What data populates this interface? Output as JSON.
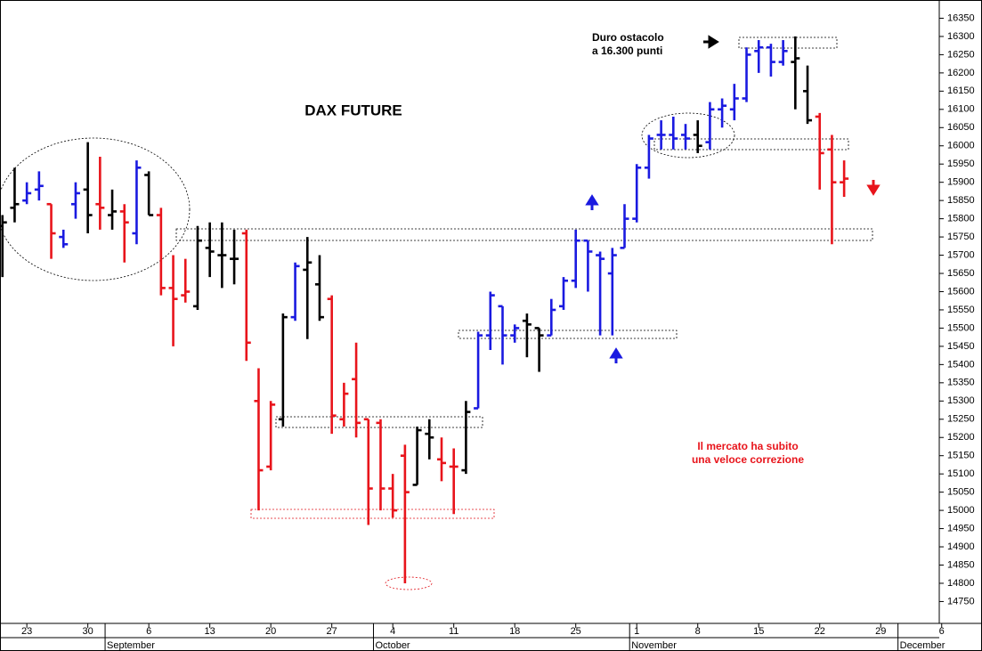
{
  "chart_data": {
    "type": "ohlc",
    "title": "DAX FUTURE",
    "annotations": [
      "Duro ostacolo",
      "a 16.300 punti",
      "Il mercato ha subito",
      "una veloce correzione"
    ],
    "xlim": [
      -2.2,
      74.8
    ],
    "ylim": [
      14690,
      16400
    ],
    "xticks": [
      {
        "value": 0,
        "label": "23"
      },
      {
        "value": 5,
        "label": "30"
      },
      {
        "value": 10,
        "label": "6"
      },
      {
        "value": 15,
        "label": "13"
      },
      {
        "value": 20,
        "label": "20"
      },
      {
        "value": 25,
        "label": "27"
      },
      {
        "value": 30,
        "label": "4"
      },
      {
        "value": 35,
        "label": "11"
      },
      {
        "value": 40,
        "label": "18"
      },
      {
        "value": 45,
        "label": "25"
      },
      {
        "value": 50,
        "label": "1"
      },
      {
        "value": 55,
        "label": "8"
      },
      {
        "value": 60,
        "label": "15"
      },
      {
        "value": 65,
        "label": "22"
      },
      {
        "value": 70,
        "label": "29"
      },
      {
        "value": 75,
        "label": "6"
      }
    ],
    "month_ticks": [
      {
        "value": 7,
        "label": "September"
      },
      {
        "value": 29,
        "label": "October"
      },
      {
        "value": 50,
        "label": "November"
      },
      {
        "value": 72,
        "label": "December"
      }
    ],
    "yticks": [
      14750,
      14800,
      14850,
      14900,
      14950,
      15000,
      15050,
      15100,
      15150,
      15200,
      15250,
      15300,
      15350,
      15400,
      15450,
      15500,
      15550,
      15600,
      15650,
      15700,
      15750,
      15800,
      15850,
      15900,
      15950,
      16000,
      16050,
      16100,
      16150,
      16200,
      16250,
      16300,
      16350
    ],
    "x": [
      -2,
      -1,
      0,
      1,
      2,
      3,
      4,
      5,
      6,
      7,
      8,
      9,
      10,
      11,
      12,
      13,
      14,
      15,
      16,
      17,
      18,
      19,
      20,
      21,
      22,
      23,
      24,
      25,
      26,
      27,
      28,
      29,
      30,
      31,
      32,
      33,
      34,
      35,
      36,
      37,
      38,
      39,
      40,
      41,
      42,
      43,
      44,
      45,
      46,
      47,
      48,
      49,
      50,
      51,
      52,
      53,
      54,
      55,
      56,
      57,
      58,
      59,
      60,
      61,
      62,
      63,
      64,
      65,
      66,
      67
    ],
    "open": [
      15780,
      15830,
      15850,
      15880,
      15840,
      15750,
      15840,
      15880,
      15840,
      15810,
      15820,
      15760,
      15920,
      15810,
      15610,
      15590,
      15560,
      15720,
      15700,
      15690,
      15760,
      15300,
      15120,
      15250,
      15530,
      15660,
      15620,
      15580,
      15250,
      15360,
      15250,
      15240,
      15060,
      15150,
      15070,
      15210,
      15140,
      15120,
      15110,
      15280,
      15480,
      15560,
      15480,
      15520,
      15500,
      15480,
      15560,
      15630,
      15740,
      15700,
      15650,
      15720,
      15800,
      15940,
      16030,
      16030,
      16030,
      16030,
      16010,
      16100,
      16100,
      16130,
      16260,
      16270,
      16230,
      16230,
      16150,
      16080,
      15990,
      15900
    ],
    "high": [
      15810,
      15940,
      15900,
      15930,
      15840,
      15770,
      15900,
      16010,
      15970,
      15880,
      15840,
      15960,
      15930,
      15830,
      15700,
      15690,
      15780,
      15790,
      15790,
      15770,
      15770,
      15390,
      15300,
      15540,
      15680,
      15750,
      15700,
      15590,
      15350,
      15460,
      15250,
      15250,
      15100,
      15180,
      15230,
      15250,
      15200,
      15170,
      15300,
      15490,
      15600,
      15560,
      15510,
      15540,
      15500,
      15580,
      15640,
      15770,
      15740,
      15710,
      15720,
      15840,
      15950,
      16030,
      16070,
      16080,
      16060,
      16070,
      16120,
      16130,
      16170,
      16270,
      16290,
      16280,
      16290,
      16300,
      16220,
      16090,
      16030,
      15960
    ],
    "low": [
      15640,
      15790,
      15840,
      15850,
      15690,
      15720,
      15800,
      15760,
      15770,
      15770,
      15680,
      15730,
      15810,
      15590,
      15450,
      15570,
      15550,
      15640,
      15610,
      15620,
      15410,
      15000,
      15110,
      15230,
      15520,
      15470,
      15520,
      15210,
      15230,
      15200,
      14960,
      15000,
      14980,
      14800,
      15070,
      15140,
      15080,
      14990,
      15100,
      15280,
      15440,
      15400,
      15460,
      15420,
      15380,
      15480,
      15550,
      15610,
      15600,
      15480,
      15480,
      15720,
      15790,
      15910,
      15990,
      15990,
      15990,
      15980,
      15990,
      16050,
      16070,
      16120,
      16200,
      16190,
      16220,
      16100,
      16060,
      15880,
      15730,
      15860
    ],
    "close": [
      15790,
      15840,
      15870,
      15890,
      15760,
      15730,
      15870,
      15810,
      15830,
      15820,
      15790,
      15940,
      15810,
      15610,
      15580,
      15600,
      15740,
      15710,
      15700,
      15690,
      15460,
      15110,
      15290,
      15530,
      15670,
      15680,
      15530,
      15260,
      15320,
      15240,
      15060,
      15060,
      15000,
      15050,
      15220,
      15200,
      15130,
      15120,
      15270,
      15480,
      15590,
      15480,
      15500,
      15510,
      15480,
      15550,
      15630,
      15740,
      15710,
      15690,
      15700,
      15800,
      15940,
      16020,
      16030,
      16020,
      16020,
      16000,
      16100,
      16110,
      16130,
      16250,
      16270,
      16230,
      16260,
      16240,
      16070,
      15980,
      15900,
      15910
    ],
    "colors": [
      "#000000",
      "#000000",
      "#1a1ae0",
      "#1a1ae0",
      "#e8141b",
      "#1a1ae0",
      "#1a1ae0",
      "#000000",
      "#e8141b",
      "#000000",
      "#e8141b",
      "#1a1ae0",
      "#000000",
      "#e8141b",
      "#e8141b",
      "#e8141b",
      "#000000",
      "#000000",
      "#000000",
      "#000000",
      "#e8141b",
      "#e8141b",
      "#e8141b",
      "#000000",
      "#1a1ae0",
      "#000000",
      "#000000",
      "#e8141b",
      "#e8141b",
      "#e8141b",
      "#e8141b",
      "#e8141b",
      "#e8141b",
      "#e8141b",
      "#000000",
      "#000000",
      "#e8141b",
      "#e8141b",
      "#000000",
      "#1a1ae0",
      "#1a1ae0",
      "#1a1ae0",
      "#1a1ae0",
      "#000000",
      "#000000",
      "#1a1ae0",
      "#1a1ae0",
      "#1a1ae0",
      "#1a1ae0",
      "#1a1ae0",
      "#1a1ae0",
      "#1a1ae0",
      "#1a1ae0",
      "#1a1ae0",
      "#1a1ae0",
      "#1a1ae0",
      "#1a1ae0",
      "#000000",
      "#1a1ae0",
      "#1a1ae0",
      "#1a1ae0",
      "#1a1ae0",
      "#1a1ae0",
      "#1a1ae0",
      "#1a1ae0",
      "#000000",
      "#000000",
      "#e8141b",
      "#e8141b",
      "#e8141b"
    ]
  }
}
